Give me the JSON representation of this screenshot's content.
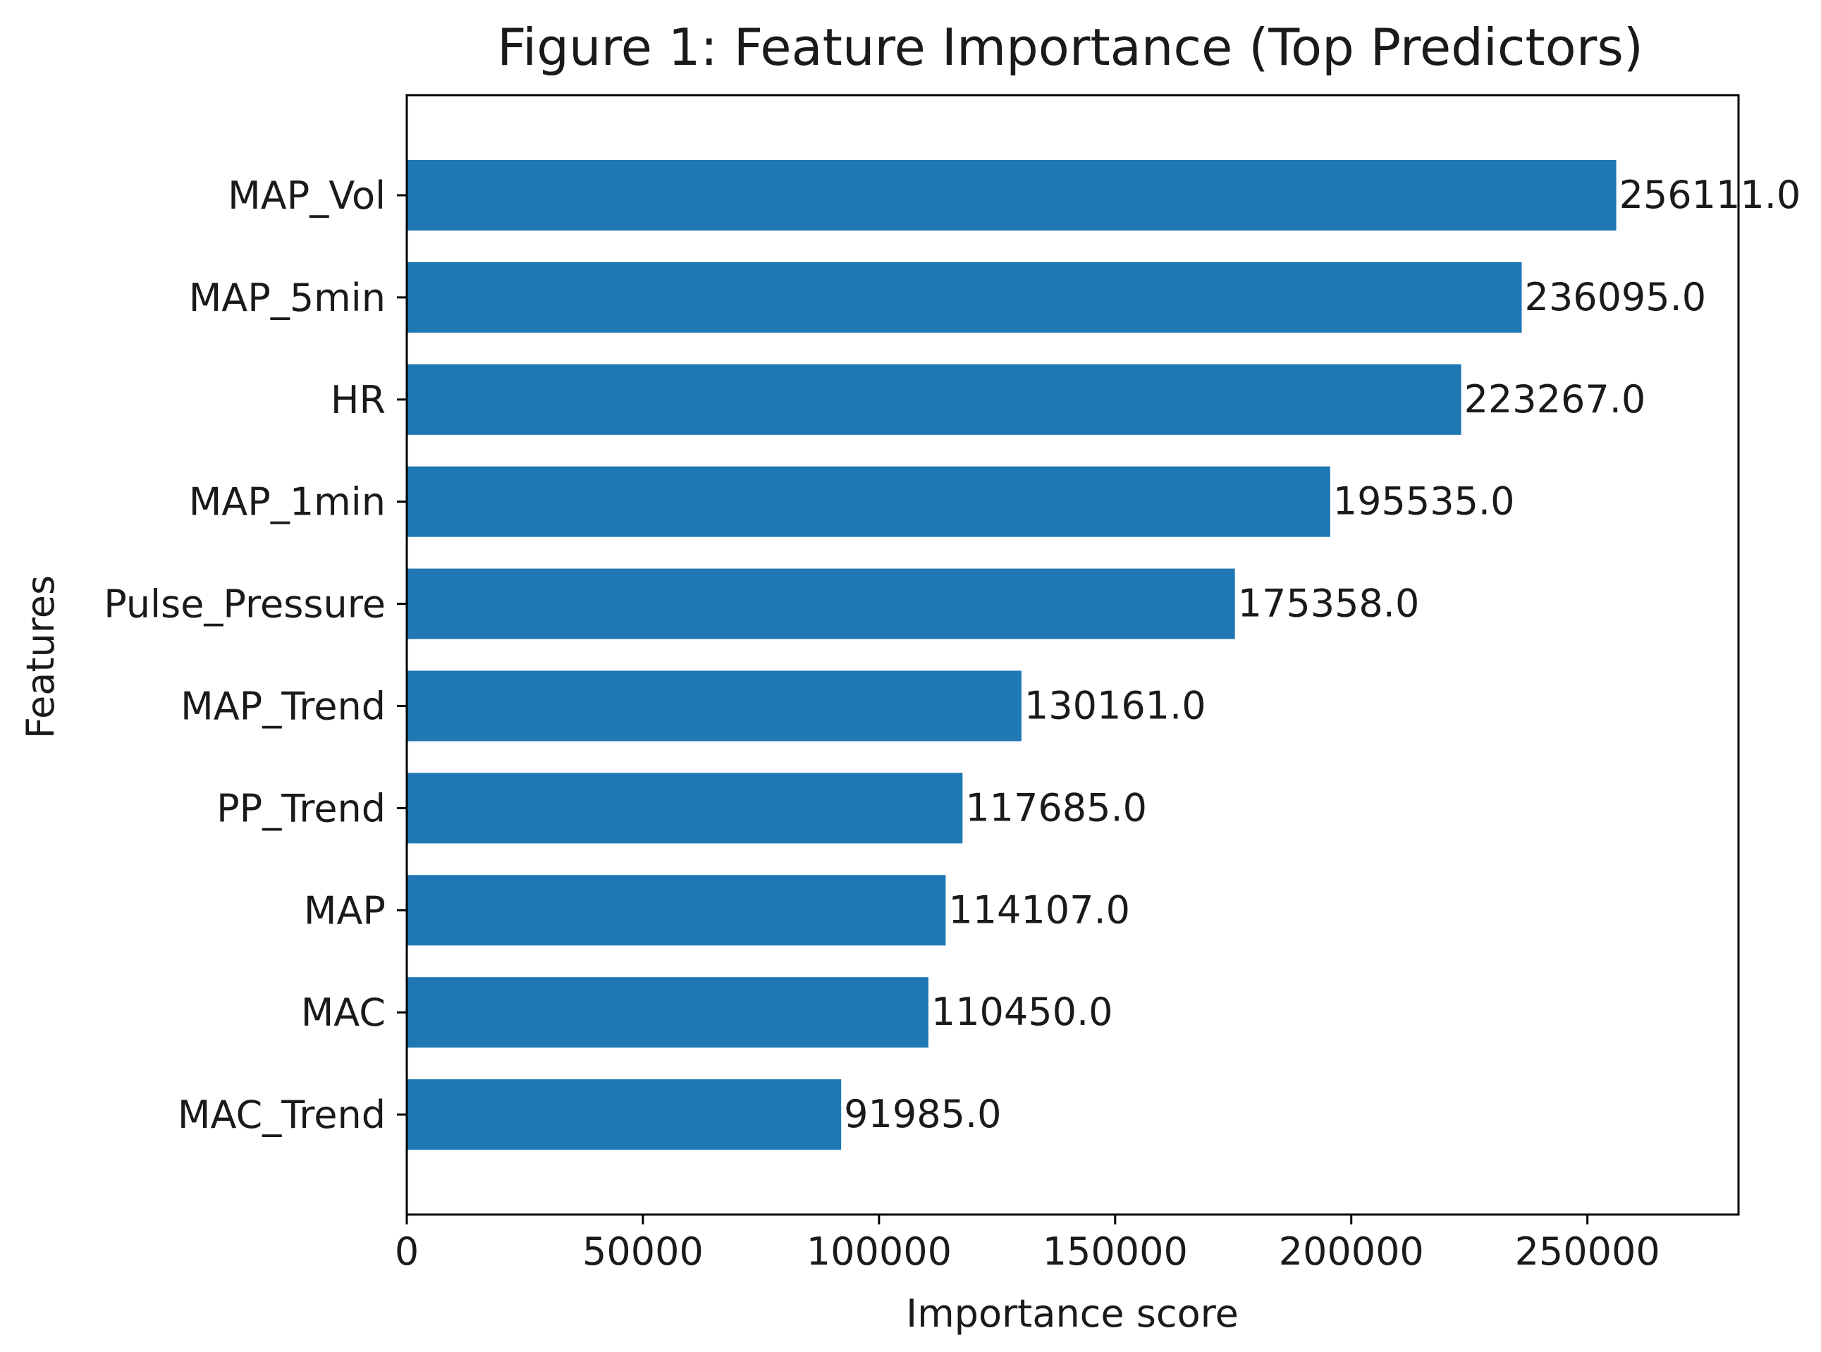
{
  "chart_data": {
    "type": "bar",
    "orientation": "horizontal",
    "title": "Figure 1: Feature Importance (Top Predictors)",
    "xlabel": "Importance score",
    "ylabel": "Features",
    "categories": [
      "MAP_Vol",
      "MAP_5min",
      "HR",
      "MAP_1min",
      "Pulse_Pressure",
      "MAP_Trend",
      "PP_Trend",
      "MAP",
      "MAC",
      "MAC_Trend"
    ],
    "values": [
      256111,
      236095,
      223267,
      195535,
      175358,
      130161,
      117685,
      114107,
      110450,
      91985
    ],
    "value_labels": [
      "256111.0",
      "236095.0",
      "223267.0",
      "195535.0",
      "175358.0",
      "130161.0",
      "117685.0",
      "114107.0",
      "110450.0",
      "91985.0"
    ],
    "xlim": [
      0,
      282000
    ],
    "xticks": [
      0,
      50000,
      100000,
      150000,
      200000,
      250000
    ],
    "xtick_labels": [
      "0",
      "50000",
      "100000",
      "150000",
      "200000",
      "250000"
    ],
    "grid": false,
    "bar_color": "#1f77b4"
  }
}
